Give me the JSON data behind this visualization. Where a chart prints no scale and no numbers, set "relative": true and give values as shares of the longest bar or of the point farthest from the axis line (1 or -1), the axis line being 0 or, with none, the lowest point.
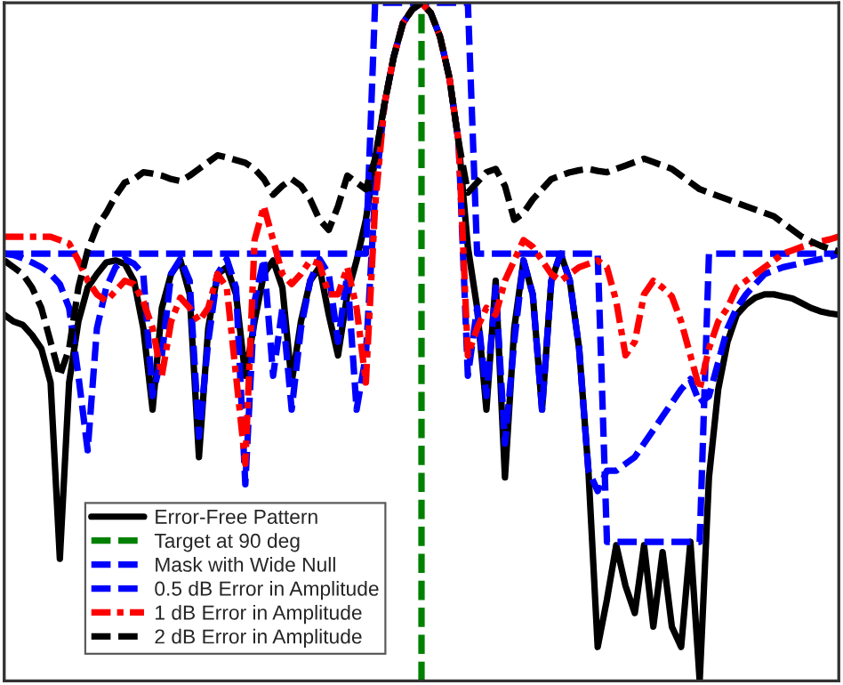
{
  "chart_data": {
    "type": "line",
    "relative": true,
    "categories": [
      null,
      null,
      null,
      null,
      null,
      null,
      null,
      null,
      null,
      null,
      null,
      null,
      null,
      null,
      null,
      null,
      null,
      null,
      null,
      null,
      null,
      null,
      null,
      null,
      null,
      null,
      null,
      null,
      null,
      null,
      null,
      null,
      null,
      null,
      null,
      null,
      null,
      null,
      null,
      null,
      null,
      null,
      null,
      null,
      null,
      null,
      null,
      null,
      null,
      null,
      null,
      null,
      null,
      null,
      null,
      null,
      null,
      null,
      null,
      null,
      null,
      null,
      null,
      null,
      null,
      null,
      null,
      null,
      null,
      null,
      null,
      null,
      null,
      null,
      null,
      null,
      null,
      null,
      null,
      null,
      null,
      null,
      null,
      null,
      null,
      null,
      null,
      null,
      null,
      null,
      null
    ],
    "legend": "bottom left",
    "ref_lines": [
      {
        "axis": "x",
        "label": "Target at 90 deg",
        "color": "#008000",
        "line_style": "dashed"
      }
    ],
    "series": [
      {
        "name": "Error-Free Pattern",
        "color": "#000000",
        "line_style": "solid",
        "values": [
          0.54,
          0.53,
          0.525,
          0.51,
          0.49,
          0.44,
          0.18,
          0.44,
          0.53,
          0.58,
          0.6,
          0.617,
          0.62,
          0.615,
          0.59,
          0.52,
          0.4,
          0.55,
          0.6,
          0.62,
          0.57,
          0.33,
          0.52,
          0.6,
          0.61,
          0.57,
          0.45,
          0.53,
          0.6,
          0.62,
          0.58,
          0.44,
          0.53,
          0.59,
          0.61,
          0.54,
          0.48,
          0.57,
          0.62,
          0.68,
          0.77,
          0.85,
          0.92,
          0.97,
          0.99,
          1,
          0.985,
          0.95,
          0.89,
          0.795,
          0.64,
          0.55,
          0.4,
          0.59,
          0.3,
          0.52,
          0.62,
          0.57,
          0.4,
          0.59,
          0.63,
          0.59,
          0.49,
          0.31,
          0.05,
          0.12,
          0.2,
          0.14,
          0.1,
          0.2,
          0.08,
          0.19,
          0.08,
          0.05,
          0.205,
          0,
          0.3,
          0.43,
          0.5,
          0.54,
          0.555,
          0.565,
          0.57,
          0.57,
          0.567,
          0.564,
          0.557,
          0.55,
          0.545,
          0.542,
          0.54
        ]
      },
      {
        "name": "Mask with Wide Null",
        "color": "#0000ff",
        "line_style": "dashed",
        "values": [
          0.63,
          0.63,
          0.63,
          0.63,
          0.63,
          0.63,
          0.63,
          0.63,
          0.63,
          0.63,
          0.63,
          0.63,
          0.63,
          0.63,
          0.63,
          0.63,
          0.63,
          0.63,
          0.63,
          0.63,
          0.63,
          0.63,
          0.63,
          0.63,
          0.63,
          0.63,
          0.63,
          0.63,
          0.63,
          0.63,
          0.63,
          0.63,
          0.63,
          0.63,
          0.63,
          0.63,
          0.63,
          0.63,
          0.63,
          0.63,
          1,
          1,
          1,
          1,
          1,
          1,
          1,
          1,
          1,
          1,
          1,
          0.63,
          0.63,
          0.63,
          0.63,
          0.63,
          0.63,
          0.63,
          0.63,
          0.63,
          0.63,
          0.63,
          0.63,
          0.63,
          0.63,
          0.205,
          0.205,
          0.205,
          0.205,
          0.205,
          0.205,
          0.205,
          0.205,
          0.205,
          0.205,
          0.205,
          0.63,
          0.63,
          0.63,
          0.63,
          0.63,
          0.63,
          0.63,
          0.63,
          0.63,
          0.63,
          0.63,
          0.63,
          0.63,
          0.63,
          0.63
        ]
      },
      {
        "name": "0.5 dB Error in Amplitude",
        "color": "#0000ff",
        "line_style": "dashed",
        "values": [
          0.63,
          0.628,
          0.623,
          0.617,
          0.61,
          0.6,
          0.585,
          0.55,
          0.45,
          0.34,
          0.52,
          0.58,
          0.61,
          0.622,
          0.615,
          0.6,
          0.42,
          0.48,
          0.6,
          0.622,
          0.59,
          0.36,
          0.5,
          0.6,
          0.622,
          0.58,
          0.29,
          0.56,
          0.622,
          0.45,
          0.55,
          0.4,
          0.52,
          0.59,
          0.622,
          0.6,
          0.5,
          0.6,
          0.4,
          0.48,
          0.72,
          0.85,
          0.92,
          0.97,
          0.99,
          1,
          0.985,
          0.95,
          0.89,
          0.795,
          0.45,
          0.55,
          0.42,
          0.58,
          0.35,
          0.5,
          0.62,
          0.57,
          0.4,
          0.59,
          0.63,
          0.59,
          0.49,
          0.31,
          0.28,
          0.31,
          0.31,
          0.32,
          0.33,
          0.35,
          0.37,
          0.39,
          0.41,
          0.43,
          0.445,
          0.41,
          0.42,
          0.47,
          0.52,
          0.55,
          0.57,
          0.585,
          0.6,
          0.605,
          0.61,
          0.613,
          0.616,
          0.619,
          0.622,
          0.625,
          0.63
        ]
      },
      {
        "name": "1 dB Error in Amplitude",
        "color": "#ff0000",
        "line_style": "dashdot",
        "values": [
          0.655,
          0.655,
          0.655,
          0.655,
          0.655,
          0.655,
          0.65,
          0.645,
          0.62,
          0.59,
          0.57,
          0.56,
          0.575,
          0.59,
          0.585,
          0.56,
          0.52,
          0.45,
          0.53,
          0.565,
          0.55,
          0.53,
          0.55,
          0.6,
          0.58,
          0.45,
          0.32,
          0.65,
          0.7,
          0.65,
          0.6,
          0.585,
          0.6,
          0.62,
          0.615,
          0.57,
          0.57,
          0.61,
          0.55,
          0.44,
          0.7,
          0.85,
          0.92,
          0.97,
          0.99,
          1,
          0.985,
          0.95,
          0.89,
          0.795,
          0.48,
          0.52,
          0.55,
          0.54,
          0.59,
          0.62,
          0.65,
          0.64,
          0.62,
          0.6,
          0.59,
          0.6,
          0.61,
          0.615,
          0.62,
          0.61,
          0.56,
          0.48,
          0.5,
          0.57,
          0.59,
          0.58,
          0.567,
          0.53,
          0.48,
          0.43,
          0.49,
          0.53,
          0.55,
          0.58,
          0.59,
          0.6,
          0.61,
          0.62,
          0.63,
          0.635,
          0.64,
          0.645,
          0.648,
          0.651,
          0.655
        ]
      },
      {
        "name": "2 dB Error in Amplitude",
        "color": "#000000",
        "line_style": "dashed",
        "values": [
          0.62,
          0.61,
          0.6,
          0.58,
          0.55,
          0.5,
          0.45,
          0.49,
          0.58,
          0.635,
          0.67,
          0.69,
          0.715,
          0.735,
          0.74,
          0.75,
          0.748,
          0.745,
          0.74,
          0.737,
          0.745,
          0.755,
          0.765,
          0.775,
          0.772,
          0.768,
          0.764,
          0.755,
          0.74,
          0.717,
          0.73,
          0.74,
          0.73,
          0.71,
          0.68,
          0.665,
          0.7,
          0.745,
          0.735,
          0.725,
          0.77,
          0.85,
          0.92,
          0.97,
          0.99,
          1,
          0.985,
          0.95,
          0.89,
          0.795,
          0.72,
          0.735,
          0.75,
          0.755,
          0.73,
          0.68,
          0.69,
          0.71,
          0.725,
          0.74,
          0.745,
          0.75,
          0.753,
          0.755,
          0.752,
          0.75,
          0.755,
          0.76,
          0.765,
          0.77,
          0.765,
          0.76,
          0.755,
          0.745,
          0.735,
          0.725,
          0.72,
          0.715,
          0.71,
          0.705,
          0.7,
          0.695,
          0.69,
          0.685,
          0.675,
          0.665,
          0.655,
          0.648,
          0.642,
          0.637,
          0.633
        ]
      }
    ]
  }
}
